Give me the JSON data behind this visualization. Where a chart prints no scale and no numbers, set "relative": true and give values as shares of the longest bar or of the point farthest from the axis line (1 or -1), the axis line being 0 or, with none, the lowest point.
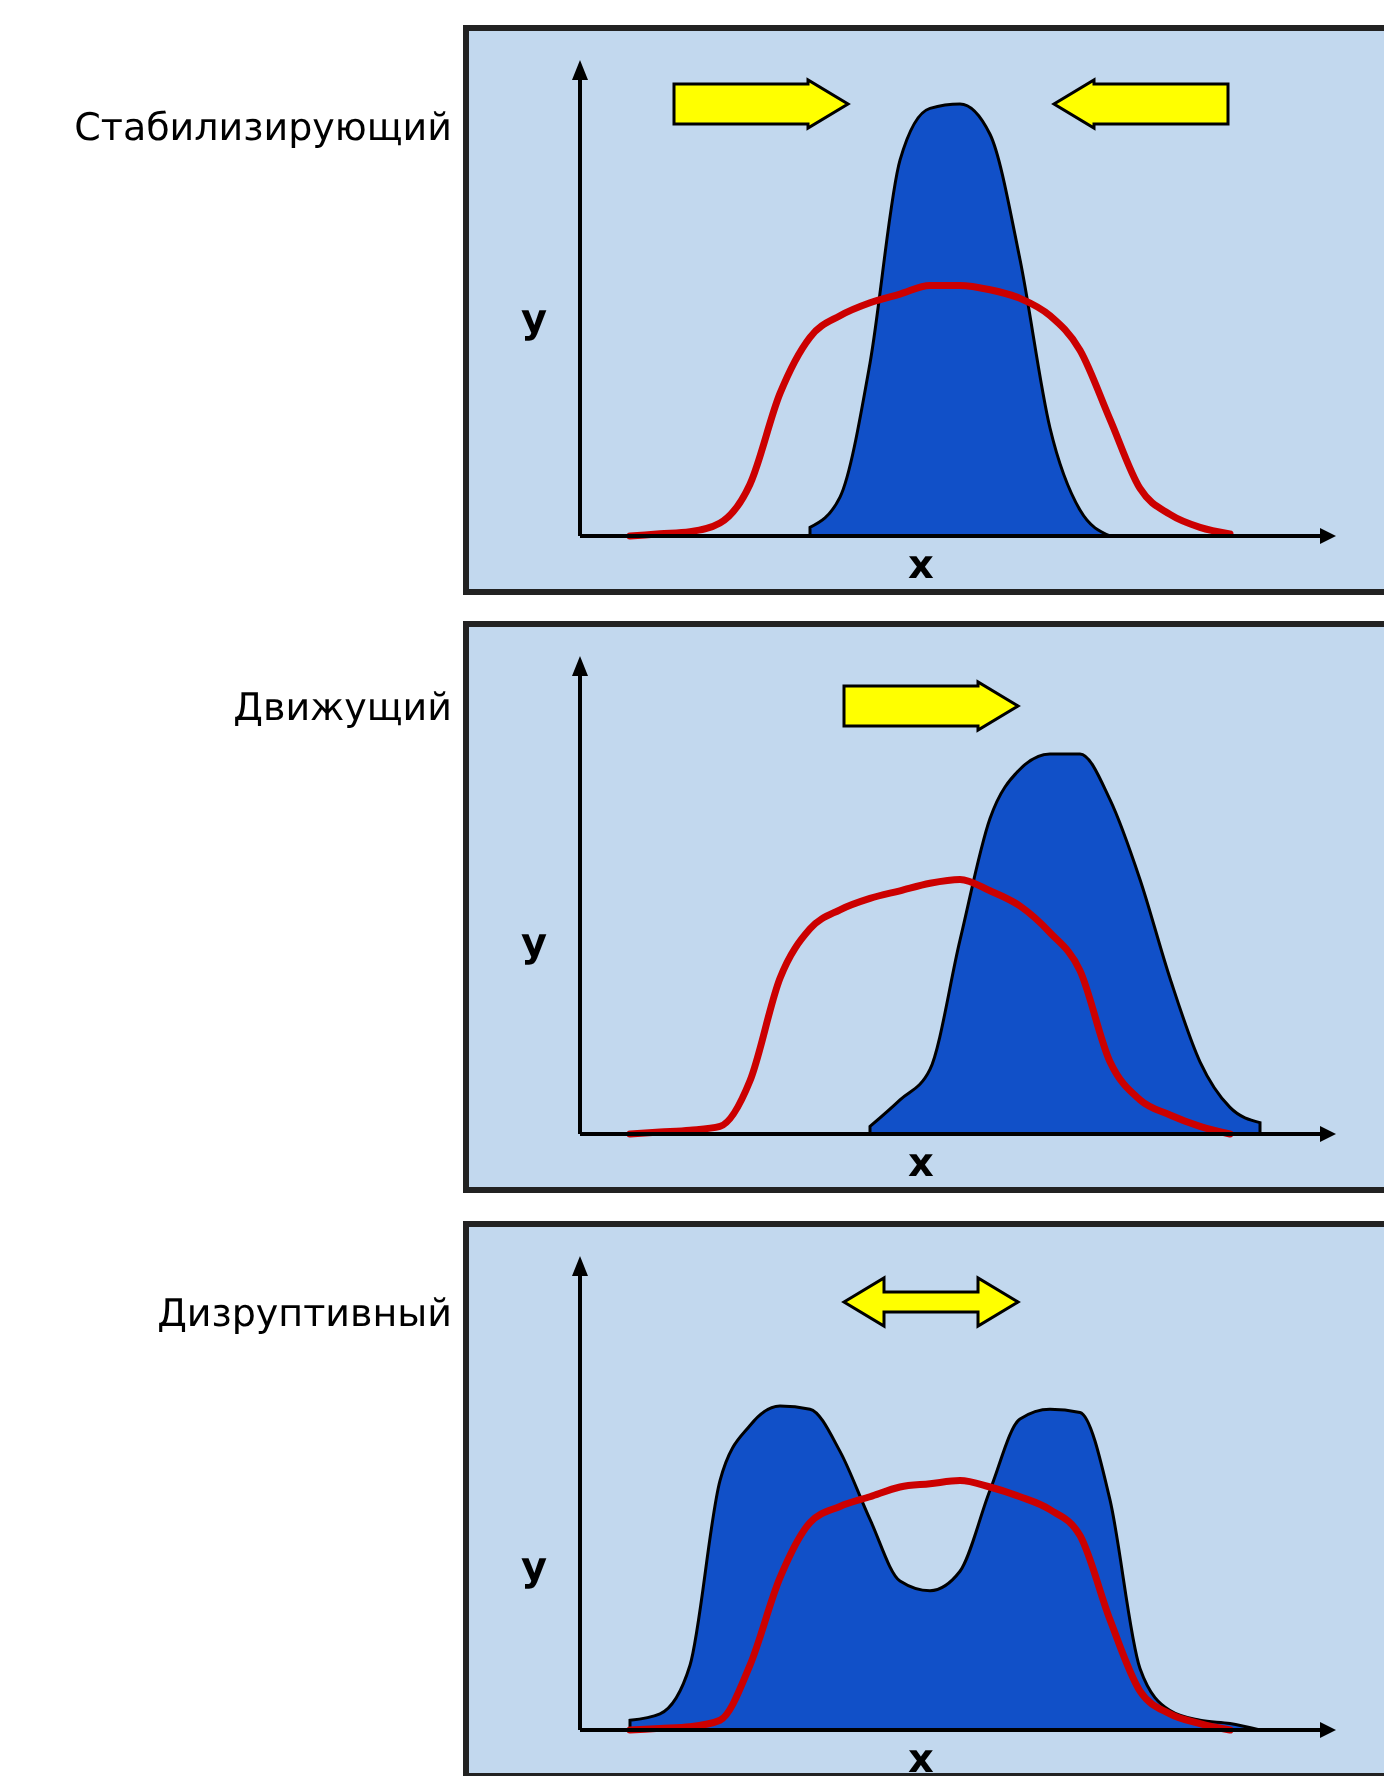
{
  "chart_data": [
    {
      "type": "area",
      "title": "Стабилизирующий",
      "xlabel": "x",
      "ylabel": "y",
      "relative": true,
      "categories": [
        null,
        null,
        null,
        null,
        null,
        null,
        null,
        null,
        null,
        null,
        null,
        null,
        null,
        null,
        null,
        null,
        null,
        null,
        null,
        null,
        null,
        null
      ],
      "series": [
        {
          "color": "#1150c8",
          "values": [
            null,
            null,
            null,
            null,
            null,
            null,
            0.02,
            0.09,
            0.4,
            0.87,
            0.99,
            1,
            0.93,
            0.64,
            0.25,
            0.06,
            0,
            null,
            null,
            null,
            null,
            null
          ]
        },
        {
          "type": "line",
          "color": "#cc0000",
          "values": [
            0,
            0.005,
            0.01,
            0.03,
            0.12,
            0.33,
            0.46,
            0.51,
            0.54,
            0.56,
            0.58,
            0.58,
            0.57,
            0.55,
            0.51,
            0.43,
            0.27,
            0.11,
            0.05,
            0.02,
            0.005,
            null
          ]
        }
      ]
    },
    {
      "type": "area",
      "title": "Движущий",
      "xlabel": "x",
      "ylabel": "y",
      "relative": true,
      "categories": [
        null,
        null,
        null,
        null,
        null,
        null,
        null,
        null,
        null,
        null,
        null,
        null,
        null,
        null,
        null,
        null,
        null,
        null,
        null,
        null,
        null,
        null
      ],
      "series": [
        {
          "color": "#1150c8",
          "values": [
            null,
            null,
            null,
            null,
            null,
            null,
            null,
            null,
            0.02,
            0.09,
            0.17,
            0.51,
            0.83,
            0.96,
            1,
            1,
            0.88,
            0.67,
            0.41,
            0.19,
            0.07,
            0.03
          ]
        },
        {
          "type": "line",
          "color": "#cc0000",
          "values": [
            0,
            0.005,
            0.01,
            0.02,
            0.14,
            0.41,
            0.54,
            0.59,
            0.62,
            0.64,
            0.66,
            0.67,
            0.64,
            0.6,
            0.53,
            0.43,
            0.19,
            0.09,
            0.05,
            0.02,
            0,
            null
          ]
        }
      ]
    },
    {
      "type": "area",
      "title": "Дизруптивный",
      "xlabel": "x",
      "ylabel": "y",
      "relative": true,
      "categories": [
        null,
        null,
        null,
        null,
        null,
        null,
        null,
        null,
        null,
        null,
        null,
        null,
        null,
        null,
        null,
        null,
        null,
        null,
        null,
        null,
        null,
        null
      ],
      "series": [
        {
          "color": "#1150c8",
          "values": [
            0.03,
            0.05,
            0.2,
            0.77,
            0.94,
            1,
            0.99,
            0.86,
            0.65,
            0.46,
            0.43,
            0.49,
            0.74,
            0.96,
            0.99,
            0.98,
            0.71,
            0.19,
            0.06,
            0.03,
            0.02,
            0
          ]
        },
        {
          "type": "line",
          "color": "#cc0000",
          "values": [
            0,
            0.005,
            0.01,
            0.03,
            0.2,
            0.47,
            0.64,
            0.69,
            0.72,
            0.75,
            0.76,
            0.77,
            0.75,
            0.72,
            0.68,
            0.6,
            0.34,
            0.12,
            0.05,
            0.02,
            0,
            null
          ]
        }
      ]
    }
  ]
}
